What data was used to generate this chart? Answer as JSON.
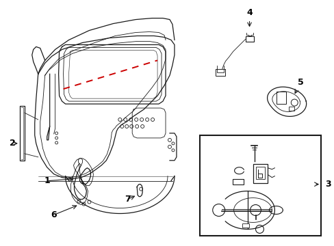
{
  "bg_color": "#ffffff",
  "line_color": "#1a1a1a",
  "red_dash_color": "#cc0000",
  "label_color": "#000000",
  "figsize": [
    4.89,
    3.6
  ],
  "dpi": 100
}
